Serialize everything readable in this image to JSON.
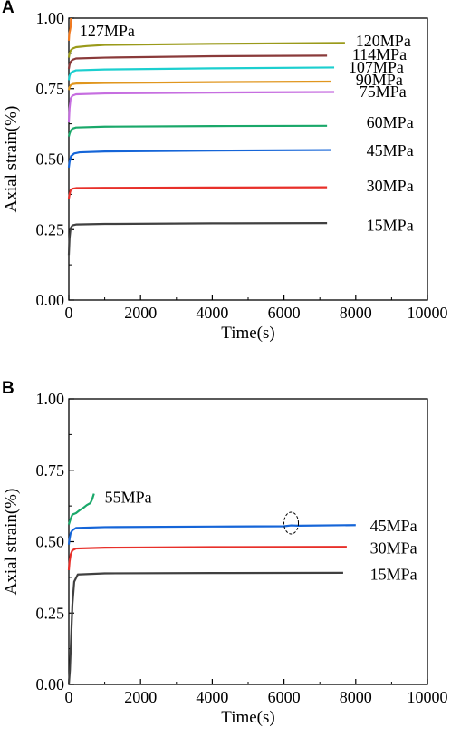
{
  "colors": {
    "15MPa": "#404040",
    "30MPa": "#e8302a",
    "45MPa": "#1565d8",
    "55MPa": "#1aa86a",
    "60MPa": "#1aa86a",
    "75MPa": "#c66ee0",
    "90MPa": "#e0961e",
    "107MPa": "#1ccfcf",
    "114MPa": "#8a3a3a",
    "120MPa": "#9a9a1a",
    "127MPa": "#f07a20"
  },
  "chart_data": [
    {
      "panel": "A",
      "type": "line",
      "xlabel": "Time(s)",
      "ylabel": "Axial strain(%)",
      "xlim": [
        0,
        10000
      ],
      "ylim": [
        0,
        1.0
      ],
      "xticks": [
        "0",
        "2000",
        "4000",
        "6000",
        "8000",
        "10000"
      ],
      "yticks": [
        "0.00",
        "0.25",
        "0.50",
        "0.75",
        "1.00"
      ],
      "grid": false,
      "series": [
        {
          "name": "15MPa",
          "color_key": "15MPa",
          "x": [
            0,
            20,
            50,
            100,
            200,
            1000,
            4000,
            7200
          ],
          "y": [
            0.16,
            0.22,
            0.255,
            0.265,
            0.268,
            0.27,
            0.272,
            0.273
          ]
        },
        {
          "name": "30MPa",
          "color_key": "30MPa",
          "x": [
            0,
            20,
            50,
            100,
            200,
            1000,
            4000,
            7200
          ],
          "y": [
            0.36,
            0.375,
            0.39,
            0.395,
            0.397,
            0.398,
            0.399,
            0.4
          ]
        },
        {
          "name": "45MPa",
          "color_key": "45MPa",
          "x": [
            0,
            20,
            60,
            150,
            300,
            1000,
            4000,
            7300
          ],
          "y": [
            0.47,
            0.49,
            0.51,
            0.52,
            0.524,
            0.527,
            0.53,
            0.532
          ]
        },
        {
          "name": "60MPa",
          "color_key": "60MPa",
          "x": [
            0,
            20,
            50,
            100,
            200,
            1000,
            4000,
            7200
          ],
          "y": [
            0.58,
            0.59,
            0.6,
            0.608,
            0.612,
            0.615,
            0.617,
            0.618
          ]
        },
        {
          "name": "75MPa",
          "color_key": "75MPa",
          "x": [
            0,
            20,
            50,
            100,
            200,
            1000,
            4000,
            7400
          ],
          "y": [
            0.63,
            0.68,
            0.715,
            0.725,
            0.73,
            0.733,
            0.736,
            0.738
          ]
        },
        {
          "name": "90MPa",
          "color_key": "90MPa",
          "x": [
            0,
            20,
            50,
            100,
            200,
            1000,
            4000,
            7300
          ],
          "y": [
            0.745,
            0.755,
            0.762,
            0.766,
            0.768,
            0.77,
            0.773,
            0.775
          ]
        },
        {
          "name": "107MPa",
          "color_key": "107MPa",
          "x": [
            0,
            20,
            50,
            100,
            200,
            1000,
            4000,
            7400
          ],
          "y": [
            0.78,
            0.795,
            0.805,
            0.81,
            0.815,
            0.818,
            0.822,
            0.825
          ]
        },
        {
          "name": "114MPa",
          "color_key": "114MPa",
          "x": [
            0,
            20,
            50,
            100,
            200,
            1000,
            4000,
            7200
          ],
          "y": [
            0.82,
            0.835,
            0.845,
            0.852,
            0.857,
            0.86,
            0.865,
            0.867
          ]
        },
        {
          "name": "120MPa",
          "color_key": "120MPa",
          "x": [
            0,
            20,
            50,
            100,
            200,
            500,
            1000,
            4000,
            7700
          ],
          "y": [
            0.86,
            0.875,
            0.885,
            0.892,
            0.897,
            0.901,
            0.905,
            0.909,
            0.912
          ]
        },
        {
          "name": "127MPa",
          "color_key": "127MPa",
          "x": [
            0,
            10,
            20,
            30,
            40,
            50,
            55,
            60
          ],
          "y": [
            0.92,
            0.94,
            0.95,
            0.955,
            0.962,
            0.97,
            0.99,
            1.0
          ]
        }
      ],
      "labels": [
        {
          "text": "127MPa",
          "x": 300,
          "y": 0.955
        },
        {
          "text": "120MPa",
          "x": 8000,
          "y": 0.92
        },
        {
          "text": "114MPa",
          "x": 7900,
          "y": 0.872
        },
        {
          "text": "107MPa",
          "x": 7800,
          "y": 0.826
        },
        {
          "text": "90MPa",
          "x": 8000,
          "y": 0.782
        },
        {
          "text": "75MPa",
          "x": 8100,
          "y": 0.74
        },
        {
          "text": "60MPa",
          "x": 8300,
          "y": 0.63
        },
        {
          "text": "45MPa",
          "x": 8300,
          "y": 0.53
        },
        {
          "text": "30MPa",
          "x": 8300,
          "y": 0.405
        },
        {
          "text": "15MPa",
          "x": 8300,
          "y": 0.265
        }
      ]
    },
    {
      "panel": "B",
      "type": "line",
      "xlabel": "Time(s)",
      "ylabel": "Axial strain(%)",
      "xlim": [
        0,
        10000
      ],
      "ylim": [
        0,
        1.0
      ],
      "xticks": [
        "0",
        "2000",
        "4000",
        "6000",
        "8000",
        "10000"
      ],
      "yticks": [
        "0.00",
        "0.25",
        "0.50",
        "0.75",
        "1.00"
      ],
      "grid": false,
      "series": [
        {
          "name": "15MPa",
          "color_key": "15MPa",
          "x": [
            0,
            30,
            60,
            100,
            150,
            250,
            1000,
            4000,
            7650
          ],
          "y": [
            0.0,
            0.05,
            0.15,
            0.28,
            0.36,
            0.385,
            0.389,
            0.39,
            0.391
          ]
        },
        {
          "name": "30MPa",
          "color_key": "30MPa",
          "x": [
            0,
            20,
            50,
            100,
            200,
            1000,
            4000,
            7750
          ],
          "y": [
            0.4,
            0.43,
            0.455,
            0.47,
            0.476,
            0.479,
            0.481,
            0.482
          ]
        },
        {
          "name": "45MPa",
          "color_key": "45MPa",
          "x": [
            0,
            20,
            50,
            100,
            200,
            1000,
            4000,
            6000,
            6200,
            6400,
            8000
          ],
          "y": [
            0.49,
            0.51,
            0.53,
            0.54,
            0.548,
            0.551,
            0.553,
            0.554,
            0.557,
            0.556,
            0.558
          ]
        },
        {
          "name": "55MPa",
          "color_key": "55MPa",
          "x": [
            0,
            50,
            100,
            200,
            300,
            400,
            500,
            600,
            650,
            700
          ],
          "y": [
            0.56,
            0.58,
            0.595,
            0.6,
            0.61,
            0.618,
            0.628,
            0.635,
            0.648,
            0.668
          ]
        }
      ],
      "labels": [
        {
          "text": "55MPa",
          "x": 1000,
          "y": 0.655
        },
        {
          "text": "45MPa",
          "x": 8400,
          "y": 0.556
        },
        {
          "text": "30MPa",
          "x": 8400,
          "y": 0.477
        },
        {
          "text": "15MPa",
          "x": 8400,
          "y": 0.385
        }
      ]
    }
  ]
}
